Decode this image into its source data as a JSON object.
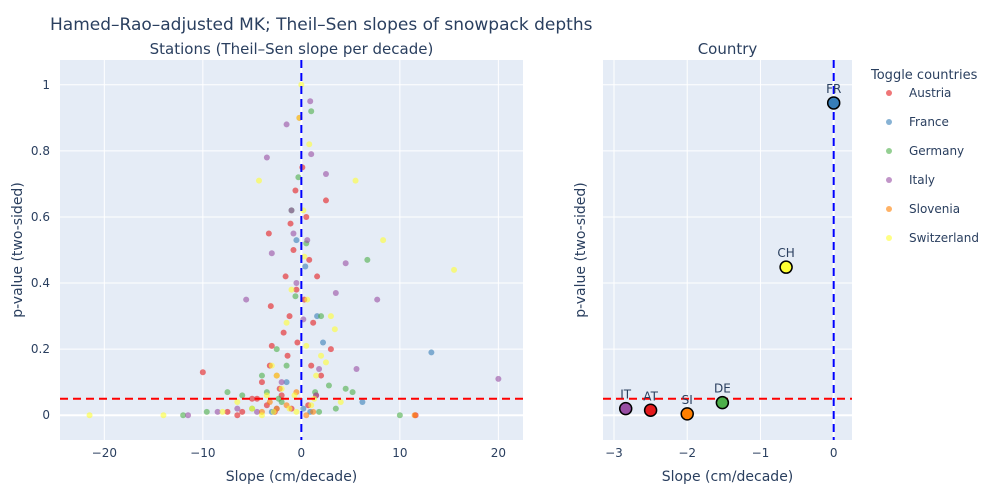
{
  "title": "Hamed–Rao–adjusted MK; Theil–Sen slopes of snowpack depths",
  "legend": {
    "title": "Toggle countries",
    "items": [
      {
        "name": "Austria",
        "color": "#e41a1c"
      },
      {
        "name": "France",
        "color": "#377eb8"
      },
      {
        "name": "Germany",
        "color": "#4daf4a"
      },
      {
        "name": "Italy",
        "color": "#984ea3"
      },
      {
        "name": "Slovenia",
        "color": "#ff7f00"
      },
      {
        "name": "Switzerland",
        "color": "#ffff33"
      }
    ]
  },
  "chart_data": [
    {
      "type": "scatter",
      "title": "Stations (Theil–Sen slope per decade)",
      "xlabel": "Slope (cm/decade)",
      "ylabel": "p-value (two-sided)",
      "xlim": [
        -24.5,
        22.5
      ],
      "ylim": [
        -0.075,
        1.075
      ],
      "xticks": [
        -20,
        -10,
        0,
        10,
        20
      ],
      "yticks": [
        0,
        0.2,
        0.4,
        0.6,
        0.8,
        1
      ],
      "reference_lines": [
        {
          "axis": "x",
          "value": 0,
          "color": "#0000ff",
          "style": "dashed"
        },
        {
          "axis": "y",
          "value": 0.05,
          "color": "#ff0000",
          "style": "dashed"
        }
      ],
      "series": [
        {
          "name": "Austria",
          "color": "#e41a1c",
          "points": [
            [
              -10,
              0.13
            ],
            [
              -6.5,
              0.0
            ],
            [
              -6,
              0.01
            ],
            [
              -5,
              0.05
            ],
            [
              -4,
              0.1
            ],
            [
              -3.5,
              0.03
            ],
            [
              -3.2,
              0.15
            ],
            [
              -3,
              0.21
            ],
            [
              -3.1,
              0.33
            ],
            [
              -3.3,
              0.55
            ],
            [
              -2.5,
              0.12
            ],
            [
              -2.2,
              0.08
            ],
            [
              -2,
              0.06
            ],
            [
              -1.8,
              0.25
            ],
            [
              -1.6,
              0.42
            ],
            [
              -1.4,
              0.18
            ],
            [
              -1.2,
              0.3
            ],
            [
              -1,
              0.02
            ],
            [
              -0.8,
              0.5
            ],
            [
              -0.6,
              0.68
            ],
            [
              -0.4,
              0.22
            ],
            [
              -0.2,
              0.9
            ],
            [
              0.3,
              0.35
            ],
            [
              0.5,
              0.6
            ],
            [
              0.8,
              0.47
            ],
            [
              1,
              0.15
            ],
            [
              1.2,
              0.28
            ],
            [
              1.6,
              0.42
            ],
            [
              2,
              0.12
            ],
            [
              2.5,
              0.65
            ],
            [
              3,
              0.2
            ],
            [
              1.5,
              0.06
            ],
            [
              -7.5,
              0.01
            ],
            [
              -2.7,
              0.01
            ],
            [
              0.1,
              0.75
            ],
            [
              -0.5,
              0.38
            ],
            [
              11.6,
              0.0
            ],
            [
              -1.1,
              0.58
            ],
            [
              -4.5,
              0.05
            ],
            [
              0.7,
              0.03
            ]
          ]
        },
        {
          "name": "France",
          "color": "#377eb8",
          "points": [
            [
              13.2,
              0.19
            ],
            [
              1.6,
              0.3
            ],
            [
              -0.5,
              0.53
            ],
            [
              0.2,
              0.02
            ],
            [
              6.2,
              0.04
            ],
            [
              -1.5,
              0.1
            ],
            [
              0.9,
              0.01
            ],
            [
              2.2,
              0.22
            ],
            [
              -3,
              0.01
            ],
            [
              0.4,
              0.45
            ]
          ]
        },
        {
          "name": "Germany",
          "color": "#4daf4a",
          "points": [
            [
              -12,
              0.0
            ],
            [
              -9.6,
              0.01
            ],
            [
              -7.5,
              0.07
            ],
            [
              -6,
              0.06
            ],
            [
              -5,
              0.02
            ],
            [
              -4,
              0.12
            ],
            [
              -3.5,
              0.07
            ],
            [
              -2.5,
              0.2
            ],
            [
              -2,
              0.04
            ],
            [
              -1.5,
              0.15
            ],
            [
              -1,
              0.62
            ],
            [
              -0.6,
              0.36
            ],
            [
              0.5,
              0.52
            ],
            [
              1,
              0.92
            ],
            [
              1.4,
              0.07
            ],
            [
              2,
              0.3
            ],
            [
              2.8,
              0.09
            ],
            [
              4.5,
              0.08
            ],
            [
              5.2,
              0.07
            ],
            [
              6.7,
              0.47
            ],
            [
              10,
              0.0
            ],
            [
              -2.3,
              0.05
            ],
            [
              3.5,
              0.02
            ],
            [
              -0.3,
              0.72
            ],
            [
              1.8,
              0.01
            ]
          ]
        },
        {
          "name": "Italy",
          "color": "#984ea3",
          "points": [
            [
              -11.5,
              0.0
            ],
            [
              -8.5,
              0.01
            ],
            [
              -6.5,
              0.02
            ],
            [
              -5.6,
              0.35
            ],
            [
              -4.5,
              0.01
            ],
            [
              -3.5,
              0.78
            ],
            [
              -3,
              0.49
            ],
            [
              -2.5,
              0.02
            ],
            [
              -2,
              0.1
            ],
            [
              -1.5,
              0.88
            ],
            [
              -1,
              0.62
            ],
            [
              -0.5,
              0.4
            ],
            [
              0.2,
              0.29
            ],
            [
              0.6,
              0.53
            ],
            [
              1,
              0.79
            ],
            [
              1.5,
              0.06
            ],
            [
              2.5,
              0.73
            ],
            [
              3.5,
              0.37
            ],
            [
              4.5,
              0.46
            ],
            [
              7.7,
              0.35
            ],
            [
              20,
              0.11
            ],
            [
              5.6,
              0.14
            ],
            [
              1.8,
              0.14
            ],
            [
              -0.8,
              0.55
            ],
            [
              0.9,
              0.95
            ]
          ]
        },
        {
          "name": "Slovenia",
          "color": "#ff7f00",
          "points": [
            [
              -4,
              0.01
            ],
            [
              -2.5,
              0.02
            ],
            [
              -1.5,
              0.03
            ],
            [
              -0.5,
              0.07
            ],
            [
              0.5,
              0.0
            ],
            [
              11.5,
              0.0
            ],
            [
              -3.2,
              0.04
            ],
            [
              1.2,
              0.01
            ]
          ]
        },
        {
          "name": "Switzerland",
          "color": "#ffff33",
          "points": [
            [
              -21.5,
              0.0
            ],
            [
              -14,
              0.0
            ],
            [
              -8,
              0.01
            ],
            [
              -6.5,
              0.04
            ],
            [
              -5,
              0.02
            ],
            [
              -4,
              0.0
            ],
            [
              -3.5,
              0.06
            ],
            [
              -3,
              0.15
            ],
            [
              -2.5,
              0.12
            ],
            [
              -2,
              0.08
            ],
            [
              -1.5,
              0.28
            ],
            [
              -1,
              0.38
            ],
            [
              -0.5,
              0.01
            ],
            [
              -0.2,
              0.9
            ],
            [
              0,
              1.0
            ],
            [
              0.2,
              0.62
            ],
            [
              0.5,
              0.21
            ],
            [
              1,
              0.03
            ],
            [
              1.5,
              0.12
            ],
            [
              2,
              0.18
            ],
            [
              2.5,
              0.16
            ],
            [
              3,
              0.3
            ],
            [
              4,
              0.04
            ],
            [
              5.5,
              0.71
            ],
            [
              8.3,
              0.53
            ],
            [
              15.5,
              0.44
            ],
            [
              -4.3,
              0.71
            ],
            [
              3.4,
              0.26
            ],
            [
              0.8,
              0.82
            ],
            [
              -1.2,
              0.02
            ],
            [
              0.3,
              0.48
            ],
            [
              -0.7,
              0.06
            ],
            [
              1.3,
              0.05
            ],
            [
              -2.8,
              0.01
            ],
            [
              0.6,
              0.35
            ]
          ]
        }
      ]
    },
    {
      "type": "scatter",
      "title": "Country",
      "xlabel": "Slope (cm/decade)",
      "ylabel": "p-value (two-sided)",
      "xlim": [
        -3.15,
        0.25
      ],
      "ylim": [
        -0.075,
        1.075
      ],
      "xticks": [
        -3,
        -2,
        -1,
        0
      ],
      "reference_lines": [
        {
          "axis": "x",
          "value": 0,
          "color": "#0000ff",
          "style": "dashed"
        },
        {
          "axis": "y",
          "value": 0.05,
          "color": "#ff0000",
          "style": "dashed"
        }
      ],
      "points": [
        {
          "label": "FR",
          "x": 0.0,
          "y": 0.945,
          "color": "#377eb8"
        },
        {
          "label": "CH",
          "x": -0.65,
          "y": 0.448,
          "color": "#ffff33"
        },
        {
          "label": "IT",
          "x": -2.84,
          "y": 0.02,
          "color": "#984ea3"
        },
        {
          "label": "AT",
          "x": -2.5,
          "y": 0.015,
          "color": "#e41a1c"
        },
        {
          "label": "SI",
          "x": -2.0,
          "y": 0.004,
          "color": "#ff7f00"
        },
        {
          "label": "DE",
          "x": -1.52,
          "y": 0.038,
          "color": "#4daf4a"
        }
      ]
    }
  ]
}
